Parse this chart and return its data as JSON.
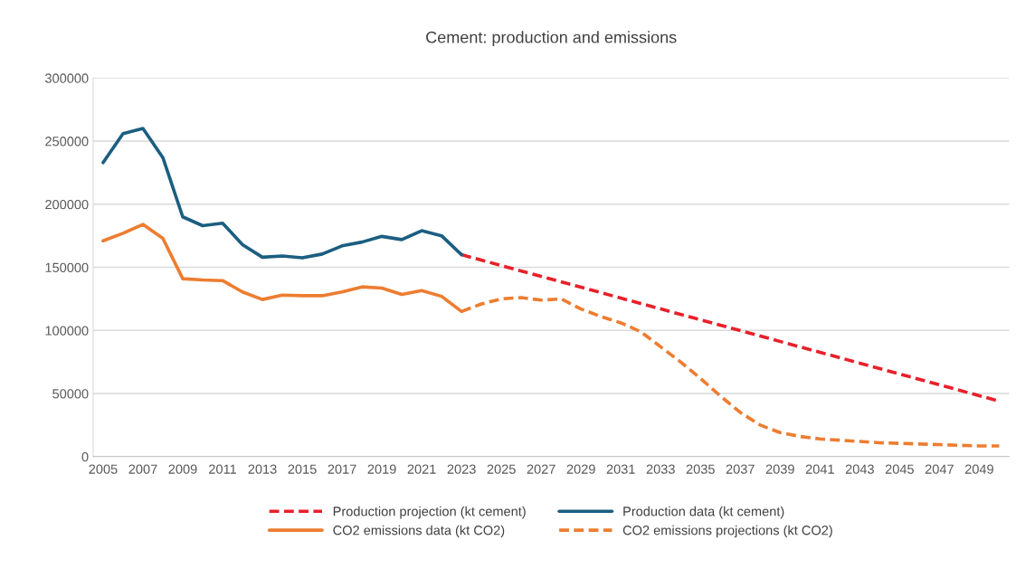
{
  "chart_data": {
    "type": "line",
    "title": "Cement: production and emissions",
    "xlim": [
      2004.5,
      2050.5
    ],
    "xticks": [
      2005,
      2007,
      2009,
      2011,
      2013,
      2015,
      2017,
      2019,
      2021,
      2023,
      2025,
      2027,
      2029,
      2031,
      2033,
      2035,
      2037,
      2039,
      2041,
      2043,
      2045,
      2047,
      2049
    ],
    "ylim": [
      0,
      300000
    ],
    "yticks": [
      0,
      50000,
      100000,
      150000,
      200000,
      250000,
      300000
    ],
    "grid": "y",
    "legend": "bottom",
    "marker": "none",
    "series": [
      {
        "name": "Production projection (kt cement)",
        "color": "#e8202a",
        "line_style": "dashed",
        "x": [
          2023,
          2050
        ],
        "values": [
          160000,
          44000
        ]
      },
      {
        "name": "Production data (kt cement)",
        "color": "#1b5e80",
        "line_style": "solid",
        "x": [
          2005,
          2006,
          2007,
          2008,
          2009,
          2010,
          2011,
          2012,
          2013,
          2014,
          2015,
          2016,
          2017,
          2018,
          2019,
          2020,
          2021,
          2022,
          2023
        ],
        "values": [
          233000,
          256000,
          260000,
          237000,
          190000,
          183000,
          185000,
          168000,
          158000,
          159000,
          157500,
          160500,
          167000,
          170000,
          174500,
          172000,
          179000,
          175000,
          160000
        ]
      },
      {
        "name": "CO2 emissions data (kt CO2)",
        "color": "#ed7d31",
        "line_style": "solid",
        "x": [
          2005,
          2006,
          2007,
          2008,
          2009,
          2010,
          2011,
          2012,
          2013,
          2014,
          2015,
          2016,
          2017,
          2018,
          2019,
          2020,
          2021,
          2022,
          2023
        ],
        "values": [
          171000,
          177000,
          184000,
          173000,
          141000,
          140000,
          139500,
          130500,
          124500,
          128000,
          127500,
          127500,
          130500,
          134500,
          133500,
          128500,
          131500,
          127000,
          115000
        ]
      },
      {
        "name": "CO2 emissions projections (kt CO2)",
        "color": "#ed7d31",
        "line_style": "dashed",
        "x": [
          2023,
          2024,
          2025,
          2026,
          2027,
          2028,
          2029,
          2030,
          2031,
          2032,
          2033,
          2034,
          2035,
          2036,
          2037,
          2038,
          2039,
          2040,
          2041,
          2042,
          2043,
          2044,
          2045,
          2046,
          2047,
          2048,
          2049,
          2050
        ],
        "values": [
          115000,
          121000,
          125000,
          126000,
          124000,
          125000,
          117000,
          111000,
          106000,
          99000,
          87000,
          75000,
          62000,
          48000,
          35000,
          25000,
          19000,
          16000,
          14000,
          13000,
          12000,
          11000,
          10500,
          10000,
          9500,
          9000,
          8500,
          8500
        ]
      }
    ]
  }
}
